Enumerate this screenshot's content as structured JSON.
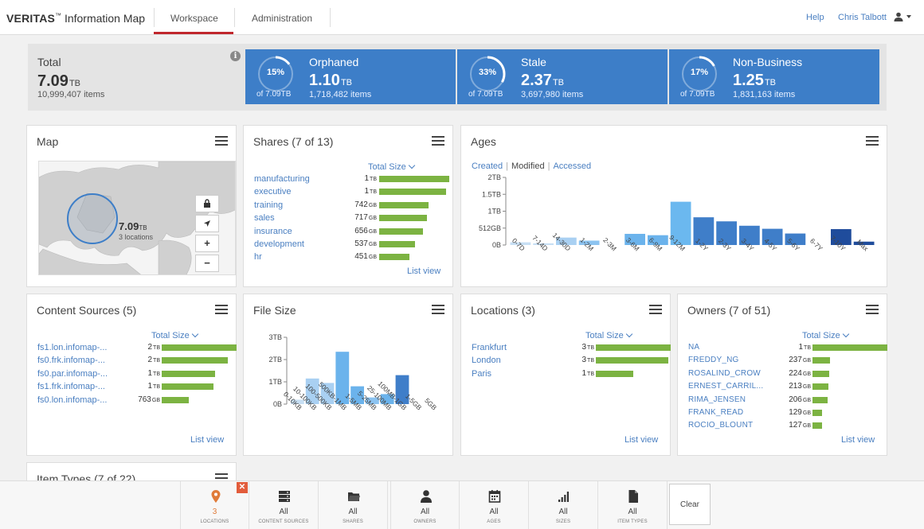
{
  "header": {
    "logo_brand": "VERITAS",
    "logo_tm": "™",
    "logo_product": "Information Map",
    "tabs": [
      {
        "label": "Workspace",
        "active": true
      },
      {
        "label": "Administration",
        "active": false
      }
    ],
    "help": "Help",
    "user": "Chris Talbott"
  },
  "summary": {
    "total": {
      "title": "Total",
      "value": "7.09",
      "unit": "TB",
      "items": "10,999,407 items"
    },
    "cards": [
      {
        "title": "Orphaned",
        "pct": "15%",
        "pct_value": 15,
        "of": "of 7.09TB",
        "value": "1.10",
        "unit": "TB",
        "items": "1,718,482 items"
      },
      {
        "title": "Stale",
        "pct": "33%",
        "pct_value": 33,
        "of": "of 7.09TB",
        "value": "2.37",
        "unit": "TB",
        "items": "3,697,980 items"
      },
      {
        "title": "Non-Business",
        "pct": "17%",
        "pct_value": 17,
        "of": "of 7.09TB",
        "value": "1.25",
        "unit": "TB",
        "items": "1,831,163 items"
      }
    ]
  },
  "map": {
    "title": "Map",
    "value": "7.09",
    "unit": "TB",
    "locations": "3 locations"
  },
  "shares": {
    "title": "Shares (7 of 13)",
    "sort_label": "Total Size",
    "list_view": "List view",
    "max_tb": 1.1,
    "rows": [
      {
        "name": "manufacturing",
        "size": "1",
        "unit": "TB",
        "tb": 1.05
      },
      {
        "name": "executive",
        "size": "1",
        "unit": "TB",
        "tb": 1.0
      },
      {
        "name": "training",
        "size": "742",
        "unit": "GB",
        "tb": 0.742
      },
      {
        "name": "sales",
        "size": "717",
        "unit": "GB",
        "tb": 0.717
      },
      {
        "name": "insurance",
        "size": "656",
        "unit": "GB",
        "tb": 0.656
      },
      {
        "name": "development",
        "size": "537",
        "unit": "GB",
        "tb": 0.537
      },
      {
        "name": "hr",
        "size": "451",
        "unit": "GB",
        "tb": 0.451
      }
    ]
  },
  "ages": {
    "title": "Ages",
    "tabs": [
      "Created",
      "Modified",
      "Accessed"
    ],
    "active_tab": "Modified"
  },
  "content_sources": {
    "title": "Content Sources (5)",
    "sort_label": "Total Size",
    "list_view": "List view",
    "max_tb": 2.1,
    "rows": [
      {
        "name": "fs1.lon.infomap-...",
        "size": "2",
        "unit": "TB",
        "tb": 2.1
      },
      {
        "name": "fs0.frk.infomap-...",
        "size": "2",
        "unit": "TB",
        "tb": 1.85
      },
      {
        "name": "fs0.par.infomap-...",
        "size": "1",
        "unit": "TB",
        "tb": 1.5
      },
      {
        "name": "fs1.frk.infomap-...",
        "size": "1",
        "unit": "TB",
        "tb": 1.45
      },
      {
        "name": "fs0.lon.infomap-...",
        "size": "763",
        "unit": "GB",
        "tb": 0.763
      }
    ]
  },
  "file_size": {
    "title": "File Size"
  },
  "locations": {
    "title": "Locations (3)",
    "sort_label": "Total Size",
    "list_view": "List view",
    "max_tb": 3.0,
    "rows": [
      {
        "name": "Frankfurt",
        "size": "3",
        "unit": "TB",
        "tb": 3.0
      },
      {
        "name": "London",
        "size": "3",
        "unit": "TB",
        "tb": 2.9
      },
      {
        "name": "Paris",
        "size": "1",
        "unit": "TB",
        "tb": 1.5
      }
    ]
  },
  "owners": {
    "title": "Owners (7 of 51)",
    "sort_label": "Total Size",
    "list_view": "List view",
    "max_gb": 1000,
    "rows": [
      {
        "name": "NA",
        "size": "1",
        "unit": "TB",
        "gb": 1000
      },
      {
        "name": "FREDDY_NG",
        "size": "237",
        "unit": "GB",
        "gb": 237
      },
      {
        "name": "ROSALIND_CROW",
        "size": "224",
        "unit": "GB",
        "gb": 224
      },
      {
        "name": "ERNEST_CARRIL...",
        "size": "213",
        "unit": "GB",
        "gb": 213
      },
      {
        "name": "RIMA_JENSEN",
        "size": "206",
        "unit": "GB",
        "gb": 206
      },
      {
        "name": "FRANK_READ",
        "size": "129",
        "unit": "GB",
        "gb": 129
      },
      {
        "name": "ROCIO_BLOUNT",
        "size": "127",
        "unit": "GB",
        "gb": 127
      }
    ]
  },
  "item_types": {
    "title": "Item Types (7 of 22)"
  },
  "filters": [
    {
      "value": "3",
      "label": "LOCATIONS",
      "icon": "map-pin-icon",
      "active": true
    },
    {
      "value": "All",
      "label": "CONTENT SOURCES",
      "icon": "server-icon",
      "active": false
    },
    {
      "value": "All",
      "label": "SHARES",
      "icon": "folder-icon",
      "active": false
    },
    {
      "value": "All",
      "label": "OWNERS",
      "icon": "user-icon",
      "active": false
    },
    {
      "value": "All",
      "label": "AGES",
      "icon": "calendar-icon",
      "active": false
    },
    {
      "value": "All",
      "label": "SIZES",
      "icon": "signal-bars-icon",
      "active": false
    },
    {
      "value": "All",
      "label": "ITEM TYPES",
      "icon": "document-icon",
      "active": false
    }
  ],
  "clear_label": "Clear",
  "chart_data": [
    {
      "type": "bar",
      "id": "ages",
      "categories": [
        "0-7D",
        "7-14D",
        "14-30D",
        "1-2M",
        "2-3M",
        "3-6M",
        "6-9M",
        "9-12M",
        "1-2Y",
        "2-3Y",
        "3-4Y",
        "4-5Y",
        "5-6Y",
        "6-7Y",
        "7-10Y",
        "Max"
      ],
      "values": [
        0.08,
        0.05,
        0.22,
        0.13,
        0.0,
        0.33,
        0.29,
        1.28,
        0.82,
        0.7,
        0.57,
        0.48,
        0.34,
        0.0,
        0.47,
        0.1
      ],
      "colors": [
        "#c7dff4",
        "#c7dff4",
        "#a9d0f2",
        "#8cc3f0",
        "#8cc3f0",
        "#6bb3ec",
        "#6bb3ec",
        "#6bb8ef",
        "#3f7ec9",
        "#3f7ec9",
        "#3f7ec9",
        "#3f7ec9",
        "#3f7ec9",
        "#3f7ec9",
        "#1f4c9c",
        "#1f4c9c"
      ],
      "ytick_labels": [
        "0B",
        "512GB",
        "1TB",
        "1.5TB",
        "2TB"
      ],
      "ytick_values": [
        0,
        0.5,
        1.0,
        1.5,
        2.0
      ],
      "ylim": [
        0,
        2
      ],
      "yunit": "TB"
    },
    {
      "type": "bar",
      "id": "file_size",
      "categories": [
        "0-10KB",
        "10-100KB",
        "100-500KB",
        "500KB-1MB",
        "1-5MB",
        "5-25MB",
        "25-100MB",
        "100MB-1GB",
        "1-5GB",
        "5GB"
      ],
      "values": [
        0.2,
        1.15,
        0.95,
        2.35,
        0.8,
        0.3,
        0.45,
        1.3,
        0.0,
        0.0
      ],
      "colors": [
        "#c7dff4",
        "#a9d0f2",
        "#a9d0f2",
        "#6bb3ec",
        "#6bb3ec",
        "#8cc3f0",
        "#6bb3ec",
        "#3f7ec9",
        "#3f7ec9",
        "#3f7ec9"
      ],
      "ytick_labels": [
        "0B",
        "1TB",
        "2TB",
        "3TB"
      ],
      "ytick_values": [
        0,
        1,
        2,
        3
      ],
      "ylim": [
        0,
        3
      ],
      "yunit": "TB"
    }
  ]
}
